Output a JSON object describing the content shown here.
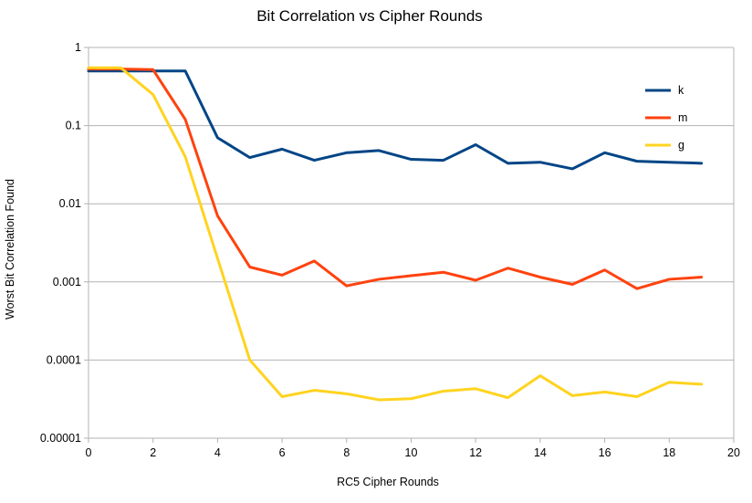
{
  "chart_data": {
    "type": "line",
    "title": "Bit Correlation vs Cipher Rounds",
    "xlabel": "RC5 Cipher Rounds",
    "ylabel": "Worst Bit Correlation Found",
    "xlim": [
      0,
      20
    ],
    "ylim": [
      1e-05,
      1
    ],
    "y_scale": "log",
    "x_ticks": [
      "0",
      "2",
      "4",
      "6",
      "8",
      "10",
      "12",
      "14",
      "16",
      "18",
      "20"
    ],
    "y_ticks": [
      "1",
      "0.1",
      "0.01",
      "0.001",
      "0.0001",
      "0.00001"
    ],
    "grid": "horizontal",
    "legend_position": "right",
    "series": [
      {
        "name": "k",
        "color": "#004586",
        "x": [
          0,
          1,
          2,
          3,
          4,
          5,
          6,
          7,
          8,
          9,
          10,
          11,
          12,
          13,
          14,
          15,
          16,
          17,
          18,
          19
        ],
        "values": [
          0.5,
          0.5,
          0.5,
          0.5,
          0.07,
          0.039,
          0.05,
          0.036,
          0.045,
          0.048,
          0.037,
          0.036,
          0.057,
          0.033,
          0.034,
          0.028,
          0.045,
          0.035,
          0.034,
          0.033
        ]
      },
      {
        "name": "m",
        "color": "#ff420e",
        "x": [
          0,
          1,
          2,
          3,
          4,
          5,
          6,
          7,
          8,
          9,
          10,
          11,
          12,
          13,
          14,
          15,
          16,
          17,
          18,
          19
        ],
        "values": [
          0.53,
          0.53,
          0.52,
          0.12,
          0.007,
          0.00155,
          0.00122,
          0.00185,
          0.00089,
          0.00108,
          0.0012,
          0.00133,
          0.00105,
          0.0015,
          0.00115,
          0.00093,
          0.00142,
          0.00082,
          0.00108,
          0.00115
        ]
      },
      {
        "name": "g",
        "color": "#ffd320",
        "x": [
          0,
          1,
          2,
          3,
          4,
          5,
          6,
          7,
          8,
          9,
          10,
          11,
          12,
          13,
          14,
          15,
          16,
          17,
          18,
          19
        ],
        "values": [
          0.55,
          0.55,
          0.25,
          0.04,
          0.002,
          0.0001,
          3.4e-05,
          4.1e-05,
          3.7e-05,
          3.1e-05,
          3.2e-05,
          4e-05,
          4.3e-05,
          3.3e-05,
          6.3e-05,
          3.5e-05,
          3.9e-05,
          3.4e-05,
          5.2e-05,
          4.9e-05
        ]
      }
    ]
  }
}
